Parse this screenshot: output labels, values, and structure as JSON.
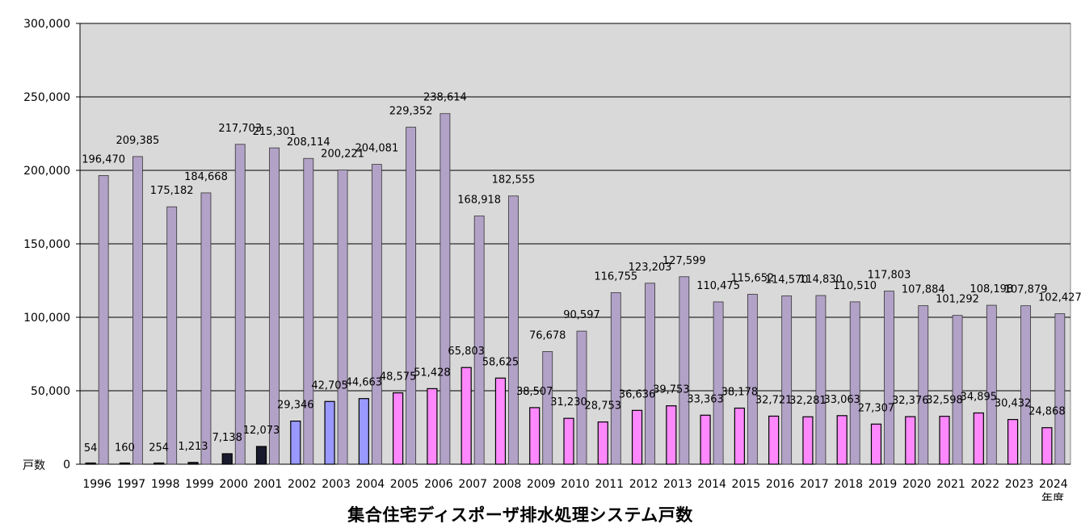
{
  "title": "集合住宅ディスポーザ排水処理システム戸数",
  "chart_data": {
    "type": "bar",
    "title": "集合住宅ディスポーザ排水処理システム戸数",
    "ylabel": "戸数",
    "xlabel": "年度",
    "ylim": [
      0,
      300000
    ],
    "yticks": [
      0,
      50000,
      100000,
      150000,
      200000,
      250000,
      300000
    ],
    "ytick_labels": [
      "0",
      "50,000",
      "100,000",
      "150,000",
      "200,000",
      "250,000",
      "300,000"
    ],
    "grid": true,
    "plot_background": "#d9d9d9",
    "categories": [
      "1996",
      "1997",
      "1998",
      "1999",
      "2000",
      "2001",
      "2002",
      "2003",
      "2004",
      "2005",
      "2006",
      "2007",
      "2008",
      "2009",
      "2010",
      "2011",
      "2012",
      "2013",
      "2014",
      "2015",
      "2016",
      "2017",
      "2018",
      "2019",
      "2020",
      "2021",
      "2022",
      "2023",
      "2024"
    ],
    "series": [
      {
        "color_by_year": true,
        "colors": {
          "low": "#1a1a2e",
          "mid": "#9999ff",
          "high": "#ff88ff"
        },
        "values": [
          54,
          160,
          254,
          1213,
          7138,
          12073,
          29346,
          42705,
          44663,
          48575,
          51428,
          65803,
          58625,
          38507,
          31230,
          28753,
          36636,
          39753,
          33363,
          38178,
          32721,
          32281,
          33063,
          27307,
          32376,
          32598,
          34895,
          30432,
          24868
        ],
        "labels": [
          "54",
          "160",
          "254",
          "1,213",
          "7,138",
          "12,073",
          "29,346",
          "42,705",
          "44,663",
          "48,575",
          "51,428",
          "65,803",
          "58,625",
          "38,507",
          "31,230",
          "28,753",
          "36,636",
          "39,753",
          "33,363",
          "38,178",
          "32,721",
          "32,281",
          "33,063",
          "27,307",
          "32,376",
          "32,598",
          "34,895",
          "30,432",
          "24,868"
        ]
      },
      {
        "color": "#b2a2c7",
        "values": [
          196470,
          209385,
          175182,
          184668,
          217703,
          215301,
          208114,
          200221,
          204081,
          229352,
          238614,
          168918,
          182555,
          76678,
          90597,
          116755,
          123203,
          127599,
          110475,
          115652,
          114570,
          114830,
          110510,
          117803,
          107884,
          101292,
          108198,
          107879,
          102427
        ],
        "labels": [
          "196,470",
          "209,385",
          "175,182",
          "184,668",
          "217,703",
          "215,301",
          "208,114",
          "200,221",
          "204,081",
          "229,352",
          "238,614",
          "168,918",
          "182,555",
          "76,678",
          "90,597",
          "116,755",
          "123,203",
          "127,599",
          "110,475",
          "115,652",
          "114,570",
          "114,830",
          "110,510",
          "117,803",
          "107,884",
          "101,292",
          "108,198",
          "107,879",
          "102,427"
        ]
      }
    ]
  }
}
